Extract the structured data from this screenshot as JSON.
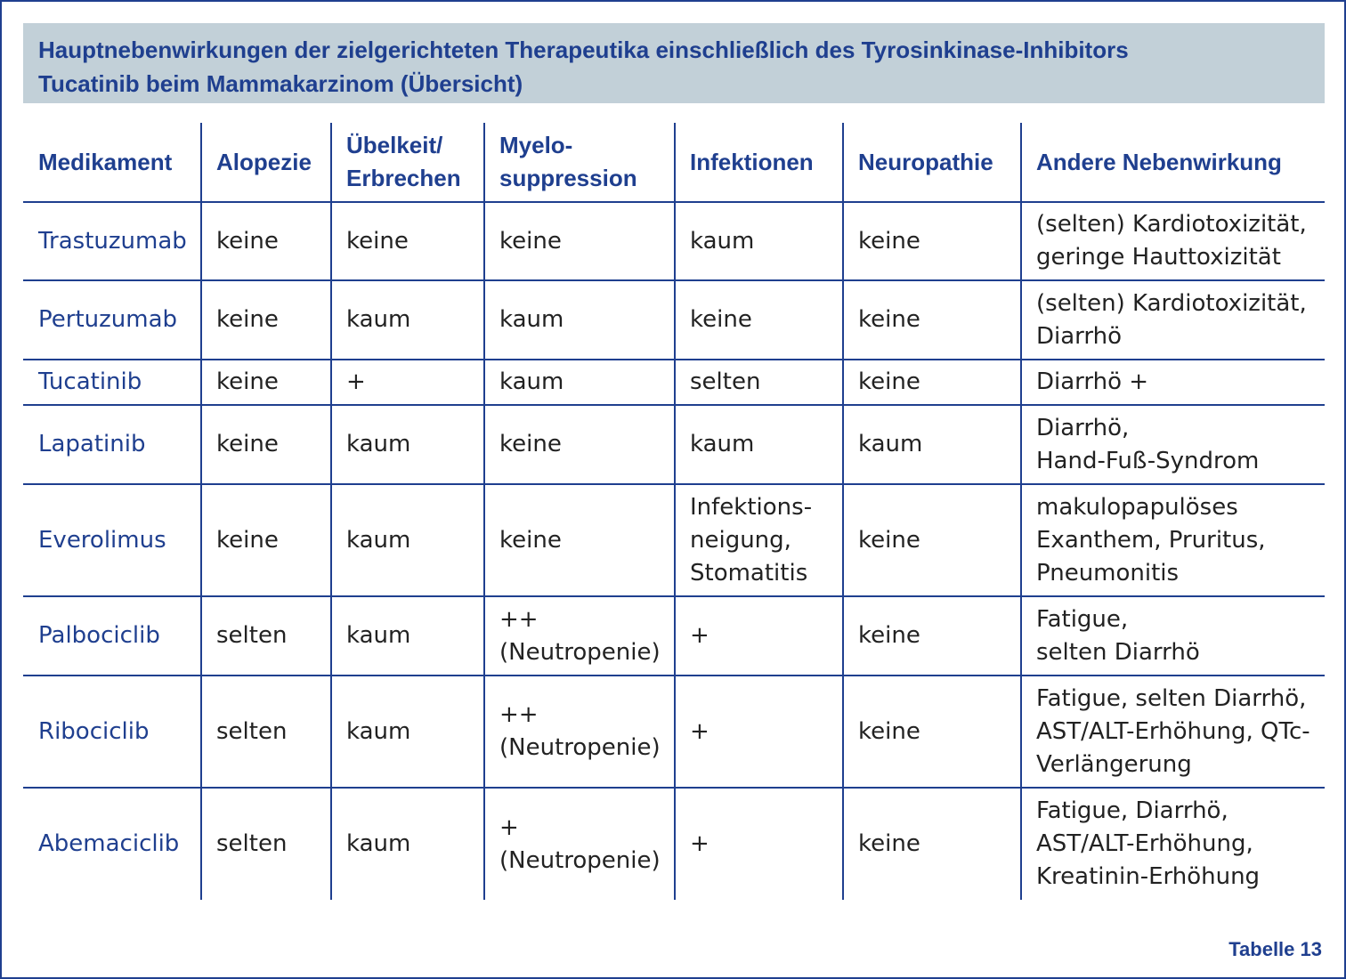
{
  "title": {
    "line1": "Hauptnebenwirkungen der zielgerichteten Therapeutika einschließlich des Tyrosinkinase-Inhibitors",
    "line2": "Tucatinib beim Mammakarzinom (Übersicht)"
  },
  "table": {
    "headers": [
      [
        "Medikament"
      ],
      [
        "Alopezie"
      ],
      [
        "Übelkeit/",
        "Erbrechen"
      ],
      [
        "Myelo-",
        "suppression"
      ],
      [
        "Infektionen"
      ],
      [
        "Neuropathie"
      ],
      [
        "Andere Nebenwirkung"
      ]
    ],
    "rows": [
      {
        "drug": "Trastuzumab",
        "alopezie": "keine",
        "uebelkeit": "keine",
        "myelo": [
          "keine"
        ],
        "infektionen": [
          "kaum"
        ],
        "neuropathie": "keine",
        "andere": [
          "(selten) Kardiotoxizität,",
          "geringe Hauttoxizität"
        ]
      },
      {
        "drug": "Pertuzumab",
        "alopezie": "keine",
        "uebelkeit": "kaum",
        "myelo": [
          "kaum"
        ],
        "infektionen": [
          "keine"
        ],
        "neuropathie": "keine",
        "andere": [
          "(selten) Kardiotoxizität,",
          "Diarrhö"
        ]
      },
      {
        "drug": "Tucatinib",
        "alopezie": "keine",
        "uebelkeit": "+",
        "myelo": [
          "kaum"
        ],
        "infektionen": [
          "selten"
        ],
        "neuropathie": "keine",
        "andere": [
          "Diarrhö +"
        ]
      },
      {
        "drug": "Lapatinib",
        "alopezie": "keine",
        "uebelkeit": "kaum",
        "myelo": [
          "keine"
        ],
        "infektionen": [
          "kaum"
        ],
        "neuropathie": "kaum",
        "andere": [
          "Diarrhö,",
          "Hand-Fuß-Syndrom"
        ]
      },
      {
        "drug": "Everolimus",
        "alopezie": "keine",
        "uebelkeit": "kaum",
        "myelo": [
          "keine"
        ],
        "infektionen": [
          "Infektions-",
          "neigung,",
          "Stomatitis"
        ],
        "neuropathie": "keine",
        "andere": [
          "makulopapulöses",
          "Exanthem, Pruritus,",
          "Pneumonitis"
        ]
      },
      {
        "drug": "Palbociclib",
        "alopezie": "selten",
        "uebelkeit": "kaum",
        "myelo": [
          "++",
          "(Neutropenie)"
        ],
        "infektionen": [
          "+"
        ],
        "neuropathie": "keine",
        "andere": [
          "Fatigue,",
          "selten Diarrhö"
        ]
      },
      {
        "drug": "Ribociclib",
        "alopezie": "selten",
        "uebelkeit": "kaum",
        "myelo": [
          "++",
          "(Neutropenie)"
        ],
        "infektionen": [
          "+"
        ],
        "neuropathie": "keine",
        "andere": [
          "Fatigue, selten Diarrhö,",
          "AST/ALT-Erhöhung, QTc-",
          "Verlängerung"
        ]
      },
      {
        "drug": "Abemaciclib",
        "alopezie": "selten",
        "uebelkeit": "kaum",
        "myelo": [
          "+",
          "(Neutropenie)"
        ],
        "infektionen": [
          "+"
        ],
        "neuropathie": "keine",
        "andere": [
          "Fatigue, Diarrhö,",
          "AST/ALT-Erhöhung,",
          "Kreatinin-Erhöhung"
        ]
      }
    ]
  },
  "footer": {
    "label": "Tabelle 13"
  }
}
